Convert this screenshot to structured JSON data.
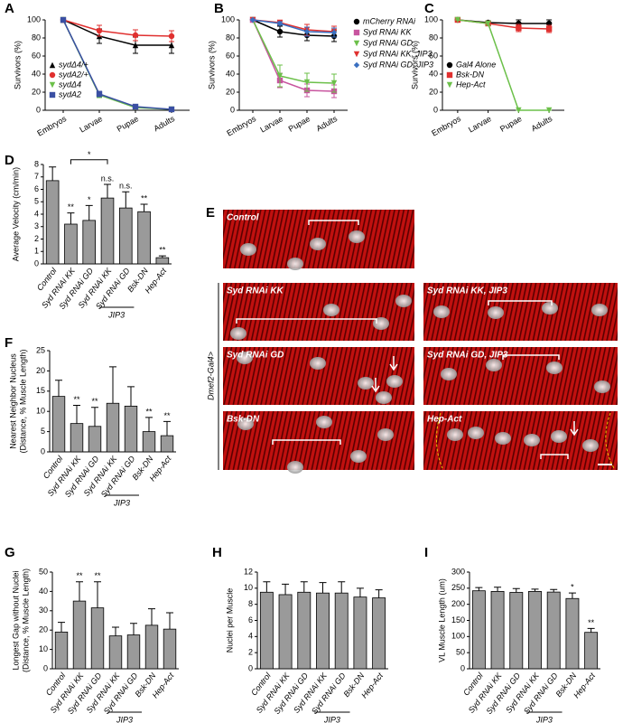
{
  "chart_data": [
    {
      "type": "line",
      "panel": "A",
      "ylabel": "Survivors (%)",
      "categories": [
        "Embryos",
        "Larvae",
        "Pupae",
        "Adults"
      ],
      "ylim": [
        0,
        100
      ],
      "yticks": [
        0,
        20,
        40,
        60,
        80,
        100
      ],
      "legend": "lower-left",
      "series": [
        {
          "name": "sydΔ4/+",
          "color": "#000000",
          "marker": "triangle",
          "values": [
            100,
            82,
            72,
            72
          ],
          "errors": [
            0,
            8,
            9,
            9
          ]
        },
        {
          "name": "sydA2/+",
          "color": "#e0302f",
          "marker": "circle",
          "values": [
            100,
            88,
            83,
            82
          ],
          "errors": [
            0,
            6,
            6,
            6
          ]
        },
        {
          "name": "sydΔ4",
          "color": "#6cc04a",
          "marker": "inverted-triangle",
          "values": [
            100,
            17,
            3,
            1
          ],
          "errors": [
            0,
            3,
            1,
            1
          ]
        },
        {
          "name": "sydA2",
          "color": "#3a4fa3",
          "marker": "square",
          "values": [
            100,
            18,
            4,
            1
          ],
          "errors": [
            0,
            3,
            1,
            1
          ]
        }
      ]
    },
    {
      "type": "line",
      "panel": "B",
      "ylabel": "Survivors (%)",
      "categories": [
        "Embryos",
        "Larvae",
        "Pupae",
        "Adults"
      ],
      "ylim": [
        0,
        100
      ],
      "yticks": [
        0,
        20,
        40,
        60,
        80,
        100
      ],
      "legend": "outside-right",
      "series": [
        {
          "name": "mCherry RNAi",
          "color": "#000000",
          "marker": "circle",
          "values": [
            100,
            87,
            83,
            82
          ],
          "errors": [
            0,
            6,
            6,
            6
          ]
        },
        {
          "name": "Syd RNAi KK",
          "color": "#c8559f",
          "marker": "square",
          "values": [
            100,
            33,
            22,
            21
          ],
          "errors": [
            0,
            8,
            7,
            7
          ]
        },
        {
          "name": "Syd RNAi GD",
          "color": "#6cc04a",
          "marker": "inverted-triangle",
          "values": [
            100,
            38,
            31,
            30
          ],
          "errors": [
            0,
            12,
            10,
            10
          ]
        },
        {
          "name": "Syd RNAi KK, JIP3",
          "color": "#e0302f",
          "marker": "inverted-triangle",
          "values": [
            100,
            97,
            89,
            87
          ],
          "errors": [
            0,
            2,
            6,
            6
          ]
        },
        {
          "name": "Syd RNAi GD, JIP3",
          "color": "#3a6fc0",
          "marker": "diamond",
          "values": [
            100,
            96,
            87,
            86
          ],
          "errors": [
            0,
            2,
            5,
            5
          ]
        }
      ]
    },
    {
      "type": "line",
      "panel": "C",
      "ylabel": "Survivors (%)",
      "categories": [
        "Embryos",
        "Larvae",
        "Pupae",
        "Adults"
      ],
      "ylim": [
        0,
        100
      ],
      "yticks": [
        0,
        20,
        40,
        60,
        80,
        100
      ],
      "legend": "center-left",
      "series": [
        {
          "name": "Gal4 Alone",
          "color": "#000000",
          "marker": "circle",
          "values": [
            100,
            97,
            96,
            96
          ],
          "errors": [
            0,
            2,
            4,
            4
          ]
        },
        {
          "name": "Bsk-DN",
          "color": "#e0302f",
          "marker": "square",
          "values": [
            100,
            96,
            91,
            90
          ],
          "errors": [
            0,
            2,
            4,
            4
          ]
        },
        {
          "name": "Hep-Act",
          "color": "#6cc04a",
          "marker": "inverted-triangle",
          "values": [
            100,
            96,
            0,
            0
          ],
          "errors": [
            0,
            2,
            0,
            0
          ]
        }
      ]
    },
    {
      "type": "bar",
      "panel": "D",
      "ylabel": "Average Velocity (cm/min)",
      "color": "#9a9a9a",
      "categories": [
        "Control",
        "Syd RNAi KK",
        "Syd RNAi GD",
        "Syd RNAi KK",
        "Syd RNAi GD",
        "Bsk-DN",
        "Hep-Act"
      ],
      "values": [
        6.7,
        3.2,
        3.5,
        5.3,
        4.5,
        4.2,
        0.5
      ],
      "errors": [
        1.1,
        0.9,
        1.2,
        1.1,
        1.3,
        0.6,
        0.15
      ],
      "significance": [
        null,
        "**",
        "*",
        "n.s.",
        "n.s.",
        "**",
        "**"
      ],
      "bracket_label": "*",
      "group_label": "JIP3",
      "ylim": [
        0,
        8
      ],
      "yticks": [
        0,
        1,
        2,
        3,
        4,
        5,
        6,
        7,
        8
      ]
    },
    {
      "type": "bar",
      "panel": "F",
      "ylabel": [
        "Nearest Neighbor Nucleus",
        "(Distance, % Muscle Length)"
      ],
      "color": "#9a9a9a",
      "categories": [
        "Control",
        "Syd RNAi KK",
        "Syd RNAi GD",
        "Syd RNAi KK",
        "Syd RNAi GD",
        "Bsk-DN",
        "Hep-Act"
      ],
      "values": [
        13.7,
        7,
        6.3,
        12,
        11.3,
        5,
        4
      ],
      "errors": [
        4,
        4.5,
        4.7,
        9,
        4.8,
        3.5,
        3.5
      ],
      "significance": [
        null,
        "**",
        "**",
        null,
        null,
        "**",
        "**"
      ],
      "group_label": "JIP3",
      "ylim": [
        0,
        25
      ],
      "yticks": [
        0,
        5,
        10,
        15,
        20,
        25
      ]
    },
    {
      "type": "bar",
      "panel": "G",
      "ylabel": [
        "Longest Gap without Nuclei",
        "(Distance, % Muscle Length)"
      ],
      "color": "#9a9a9a",
      "categories": [
        "Control",
        "Syd RNAi KK",
        "Syd RNAi GD",
        "Syd RNAi KK",
        "Syd RNAi GD",
        "Bsk-DN",
        "Hep-Act"
      ],
      "values": [
        19,
        35,
        31.5,
        17,
        17.5,
        22.5,
        20.5
      ],
      "errors": [
        5,
        10,
        13.5,
        4.5,
        6,
        8.5,
        8.5
      ],
      "significance": [
        null,
        "**",
        "**",
        null,
        null,
        null,
        null
      ],
      "group_label": "JIP3",
      "ylim": [
        0,
        50
      ],
      "yticks": [
        0,
        10,
        20,
        30,
        40,
        50
      ]
    },
    {
      "type": "bar",
      "panel": "H",
      "ylabel": "Nuclei per Muscle",
      "color": "#9a9a9a",
      "categories": [
        "Control",
        "Syd RNAi KK",
        "Syd RNAi GD",
        "Syd RNAi KK",
        "Syd RNAi GD",
        "Bsk-DN",
        "Hep-Act"
      ],
      "values": [
        9.5,
        9.2,
        9.5,
        9.4,
        9.4,
        8.9,
        8.8
      ],
      "errors": [
        1.3,
        1.3,
        1.3,
        1.3,
        1.4,
        1.1,
        1.0
      ],
      "group_label": "JIP3",
      "ylim": [
        0,
        12
      ],
      "yticks": [
        0,
        2,
        4,
        6,
        8,
        10,
        12
      ]
    },
    {
      "type": "bar",
      "panel": "I",
      "ylabel": "VL Muscle Length (um)",
      "color": "#9a9a9a",
      "categories": [
        "Control",
        "Syd RNAi KK",
        "Syd RNAi GD",
        "Syd RNAi KK",
        "Syd RNAi GD",
        "Bsk-DN",
        "Hep-Act"
      ],
      "values": [
        242,
        240,
        237,
        240,
        238,
        218,
        113
      ],
      "errors": [
        10,
        13,
        12,
        7,
        8,
        17,
        12
      ],
      "significance": [
        null,
        null,
        null,
        null,
        null,
        "*",
        "**"
      ],
      "group_label": "JIP3",
      "ylim": [
        0,
        300
      ],
      "yticks": [
        0,
        50,
        100,
        150,
        200,
        250,
        300
      ]
    }
  ],
  "micrographs": {
    "panel": "E",
    "side_label": "Dmef2-Gal4>",
    "images": [
      {
        "label": "Control"
      },
      {
        "label": "Syd RNAi KK"
      },
      {
        "label": "Syd RNAi KK, JIP3"
      },
      {
        "label": "Syd RNAi GD"
      },
      {
        "label": "Syd RNAi GD, JIP3"
      },
      {
        "label": "Bsk-DN"
      },
      {
        "label": "Hep-Act"
      }
    ]
  }
}
